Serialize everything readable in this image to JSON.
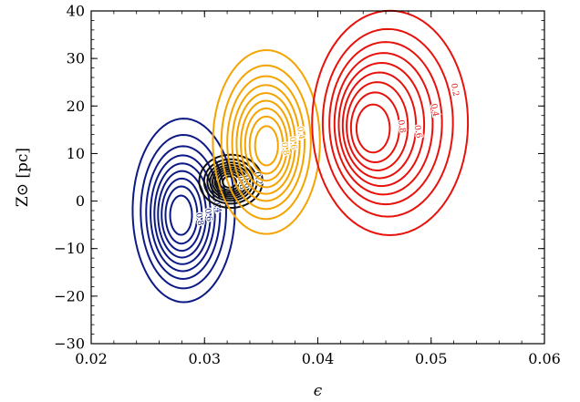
{
  "chart_data": {
    "type": "contour",
    "xlabel": "ϵ",
    "ylabel": "Z⊙ [pc]",
    "xlim": [
      0.02,
      0.06
    ],
    "ylim": [
      -30,
      40
    ],
    "x_ticks": [
      "0.02",
      "0.03",
      "0.04",
      "0.05",
      "0.06"
    ],
    "y_ticks": [
      "−30",
      "−20",
      "−10",
      "0",
      "10",
      "20",
      "30",
      "40"
    ],
    "x_tick_values": [
      0.02,
      0.03,
      0.04,
      0.05,
      0.06
    ],
    "y_tick_values": [
      -30,
      -20,
      -10,
      0,
      10,
      20,
      30,
      40
    ],
    "grid": false,
    "levels": [
      0.1,
      0.2,
      0.3,
      0.4,
      0.5,
      0.6,
      0.7,
      0.8,
      0.9
    ],
    "series": [
      {
        "color": "#0d1a85",
        "center": [
          0.0282,
          -3.0
        ],
        "sigma": [
          0.0021,
          9.0
        ],
        "peak_offset": [
          -0.0003,
          0
        ],
        "labels": [
          {
            "text": "0.8",
            "level": 0.8
          },
          {
            "text": "0.6",
            "level": 0.6
          },
          {
            "text": "0.4",
            "level": 0.4
          }
        ]
      },
      {
        "color": "#111111",
        "center": [
          0.0322,
          4.0
        ],
        "sigma": [
          0.0013,
          2.6
        ],
        "peak_offset": [
          0,
          0
        ],
        "labels": [
          {
            "text": "0.8",
            "level": 0.8
          },
          {
            "text": "0.6",
            "level": 0.6
          },
          {
            "text": "0.2",
            "level": 0.2
          }
        ]
      },
      {
        "color": "#f5a300",
        "center": [
          0.0352,
          13.0
        ],
        "sigma": [
          0.0022,
          9.0
        ],
        "peak_offset": [
          0.0003,
          -1.5
        ],
        "labels": [
          {
            "text": "0.8",
            "level": 0.8
          },
          {
            "text": "0.6",
            "level": 0.6
          },
          {
            "text": "0.4",
            "level": 0.4
          }
        ]
      },
      {
        "color": "#e8120c",
        "center": [
          0.0465,
          18.0
        ],
        "sigma": [
          0.0032,
          11.0
        ],
        "peak_offset": [
          -0.0018,
          -3.0
        ],
        "labels": [
          {
            "text": "0.6",
            "level": 0.6
          },
          {
            "text": "0.8",
            "level": 0.8
          },
          {
            "text": "0.4",
            "level": 0.4
          },
          {
            "text": "0.2",
            "level": 0.2
          }
        ]
      }
    ]
  }
}
